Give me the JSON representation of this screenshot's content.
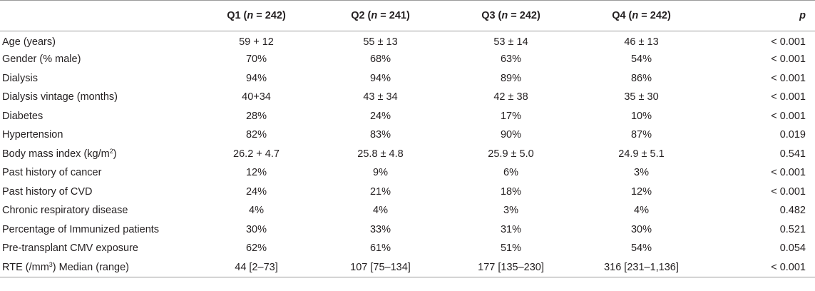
{
  "header": {
    "blank": "",
    "q1": {
      "label": "Q1 (",
      "n": "n",
      "rest": " = 242)"
    },
    "q2": {
      "label": "Q2 (",
      "n": "n",
      "rest": " = 241)"
    },
    "q3": {
      "label": "Q3 (",
      "n": "n",
      "rest": " = 242)"
    },
    "q4": {
      "label": "Q4 (",
      "n": "n",
      "rest": " = 242)"
    },
    "p": "p"
  },
  "rows": [
    {
      "label": "Age (years)",
      "q1": "59 + 12",
      "q2": "55 ± 13",
      "q3": "53 ± 14",
      "q4": "46 ± 13",
      "p": "< 0.001"
    },
    {
      "label": "Gender (% male)",
      "q1": "70%",
      "q2": "68%",
      "q3": "63%",
      "q4": "54%",
      "p": "< 0.001"
    },
    {
      "label": "Dialysis",
      "q1": "94%",
      "q2": "94%",
      "q3": "89%",
      "q4": "86%",
      "p": "< 0.001"
    },
    {
      "label": "Dialysis vintage (months)",
      "q1": "40+34",
      "q2": "43 ± 34",
      "q3": "42 ± 38",
      "q4": "35 ± 30",
      "p": "< 0.001"
    },
    {
      "label": "Diabetes",
      "q1": "28%",
      "q2": "24%",
      "q3": "17%",
      "q4": "10%",
      "p": "< 0.001"
    },
    {
      "label": "Hypertension",
      "q1": "82%",
      "q2": "83%",
      "q3": "90%",
      "q4": "87%",
      "p": "0.019"
    },
    {
      "label": "Body mass index (kg/m",
      "label_sup": "2",
      "label_end": ")",
      "q1": "26.2 + 4.7",
      "q2": "25.8 ± 4.8",
      "q3": "25.9 ± 5.0",
      "q4": "24.9 ± 5.1",
      "p": "0.541"
    },
    {
      "label": "Past history of cancer",
      "q1": "12%",
      "q2": "9%",
      "q3": "6%",
      "q4": "3%",
      "p": "< 0.001"
    },
    {
      "label": "Past history of CVD",
      "q1": "24%",
      "q2": "21%",
      "q3": "18%",
      "q4": "12%",
      "p": "< 0.001"
    },
    {
      "label": "Chronic respiratory disease",
      "q1": "4%",
      "q2": "4%",
      "q3": "3%",
      "q4": "4%",
      "p": "0.482"
    },
    {
      "label": "Percentage of Immunized patients",
      "q1": "30%",
      "q2": "33%",
      "q3": "31%",
      "q4": "30%",
      "p": "0.521"
    },
    {
      "label": "Pre-transplant CMV exposure",
      "q1": "62%",
      "q2": "61%",
      "q3": "51%",
      "q4": "54%",
      "p": "0.054"
    },
    {
      "label": "RTE (/mm",
      "label_sup": "3",
      "label_end": ") Median (range)",
      "q1": "44 [2–73]",
      "q2": "107 [75–134]",
      "q3": "177 [135–230]",
      "q4": "316 [231–1,136]",
      "p": "< 0.001"
    }
  ]
}
